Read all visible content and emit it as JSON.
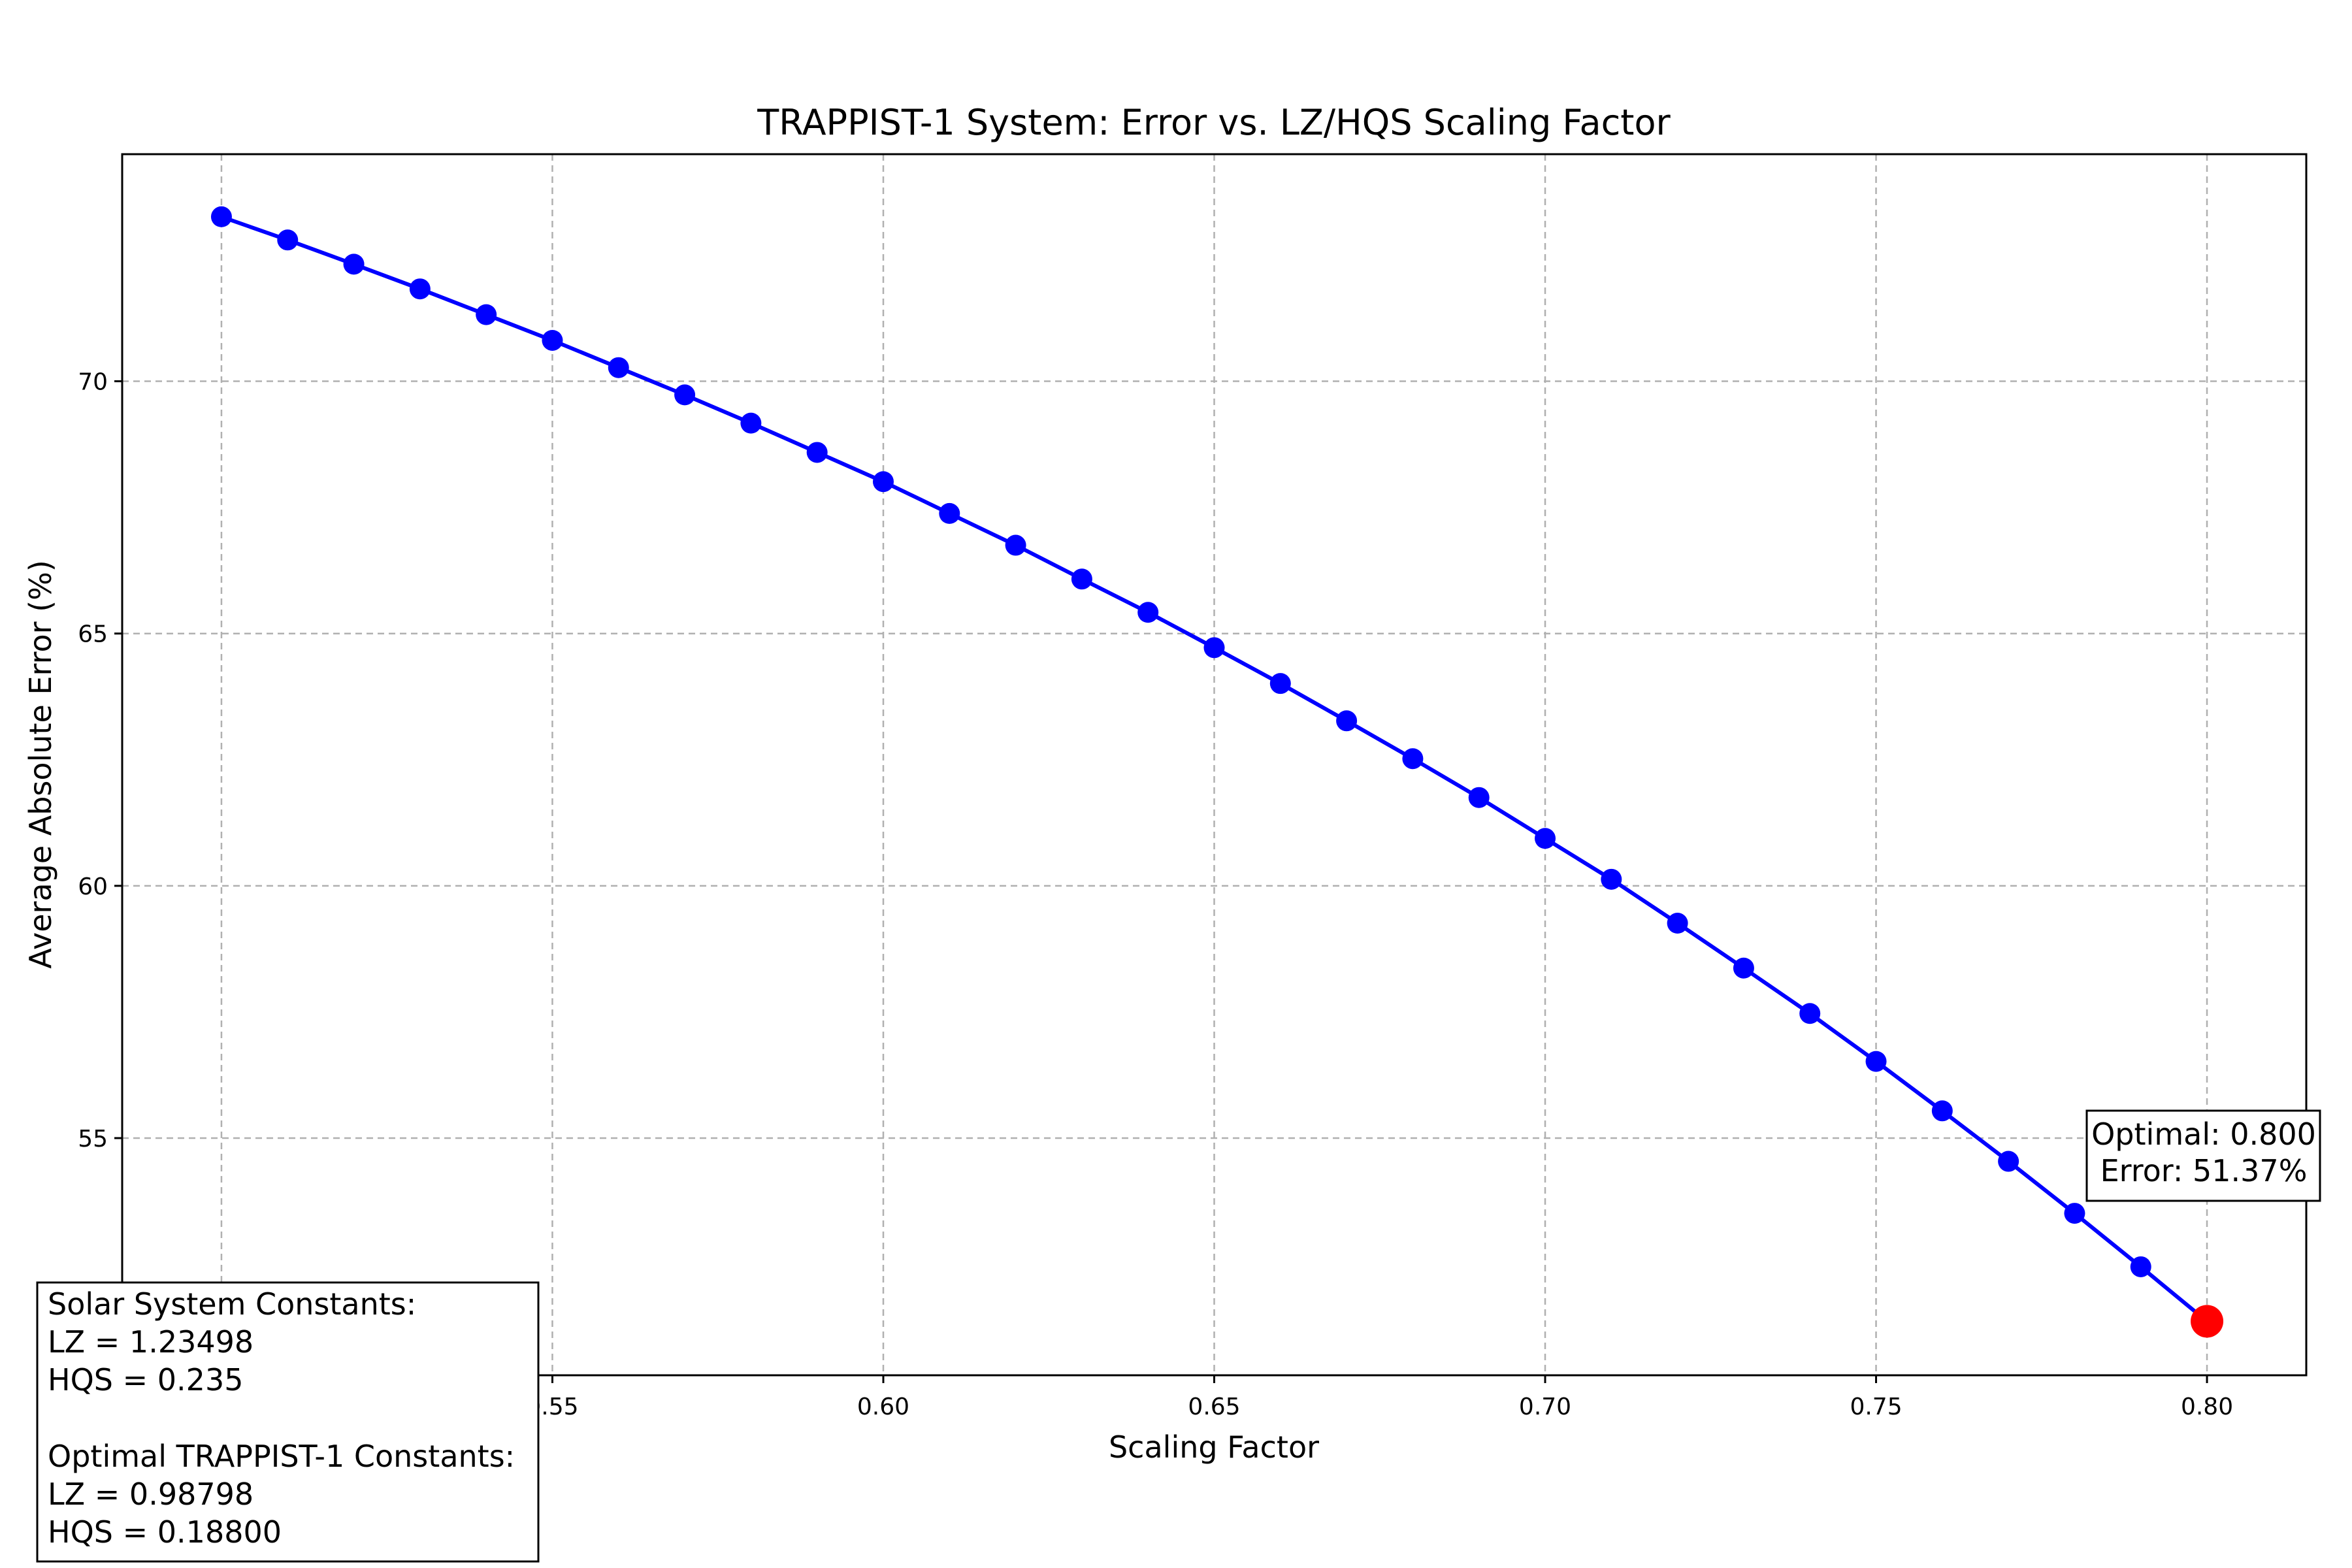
{
  "chart_data": {
    "type": "line",
    "title": "TRAPPIST-1 System: Error vs. LZ/HQS Scaling Factor",
    "xlabel": "Scaling Factor",
    "ylabel": "Average Absolute Error (%)",
    "xlim": [
      0.485,
      0.815
    ],
    "ylim": [
      50.3,
      74.5
    ],
    "xticks": [
      "0.50",
      "0.55",
      "0.60",
      "0.65",
      "0.70",
      "0.75",
      "0.80"
    ],
    "yticks": [
      "55",
      "60",
      "65",
      "70"
    ],
    "grid": true,
    "series": [
      {
        "color": "#0000ff",
        "x": [
          0.5,
          0.51,
          0.52,
          0.53,
          0.54,
          0.55,
          0.56,
          0.57,
          0.58,
          0.59,
          0.6,
          0.61,
          0.62,
          0.63,
          0.64,
          0.65,
          0.66,
          0.67,
          0.68,
          0.69,
          0.7,
          0.71,
          0.72,
          0.73,
          0.74,
          0.75,
          0.76,
          0.77,
          0.78,
          0.79,
          0.8
        ],
        "y": [
          73.26,
          72.8,
          72.32,
          71.83,
          71.32,
          70.81,
          70.27,
          69.73,
          69.17,
          68.59,
          68.01,
          67.38,
          66.75,
          66.08,
          65.42,
          64.72,
          64.01,
          63.27,
          62.52,
          61.75,
          60.94,
          60.13,
          59.26,
          58.37,
          57.47,
          56.52,
          55.54,
          54.54,
          53.51,
          52.45,
          51.37
        ]
      }
    ],
    "optimal_point": {
      "x": 0.8,
      "y": 51.37,
      "color": "#ff0000"
    },
    "annotation": {
      "line1": "Optimal: 0.800",
      "line2": "Error: 51.37%"
    },
    "info_box": {
      "line1": "Solar System Constants:",
      "line2": "LZ = 1.23498",
      "line3": "HQS = 0.235",
      "line4": "Optimal TRAPPIST-1 Constants:",
      "line5": "LZ = 0.98798",
      "line6": "HQS = 0.18800"
    }
  }
}
